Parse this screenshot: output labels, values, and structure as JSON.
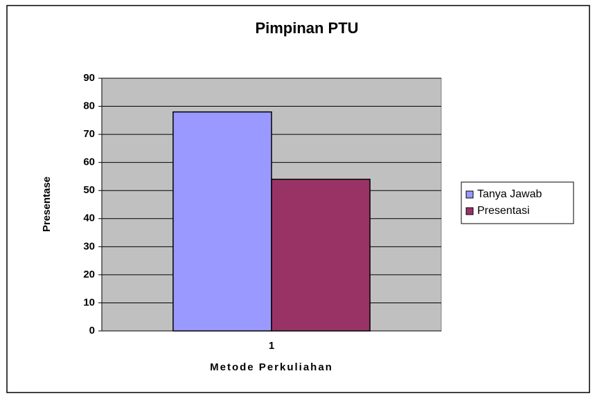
{
  "chart_data": {
    "type": "bar",
    "title": "Pimpinan PTU",
    "y_label": "Presentase",
    "x_label": "Metode Perkuliahan",
    "categories": [
      "1"
    ],
    "series": [
      {
        "name": "Tanya Jawab",
        "color": "#9999ff",
        "values": [
          78
        ]
      },
      {
        "name": "Presentasi",
        "color": "#993366",
        "values": [
          54
        ]
      }
    ],
    "ylim": [
      0,
      90
    ],
    "yticks": [
      0,
      10,
      20,
      30,
      40,
      50,
      60,
      70,
      80,
      90
    ],
    "grid": true,
    "legend": "right",
    "plot_background": "#c0c0c0"
  }
}
